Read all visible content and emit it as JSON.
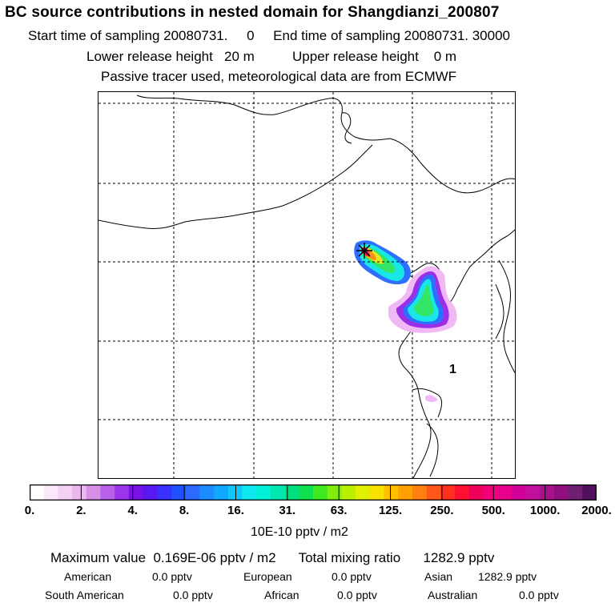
{
  "header": {
    "title": "BC  source contributions in nested domain for Shangdianzi_200807",
    "sampling": "Start time of sampling 20080731.     0     End time of sampling 20080731. 30000",
    "release": "Lower release height   20 m          Upper release height    0 m",
    "tracer": "Passive tracer used, meteorological data are from ECMWF"
  },
  "map": {
    "label_1": "1",
    "colors": {
      "coast": "#000000",
      "grid": "#000000",
      "plume_outer": "#f0b8f5",
      "plume_violet": "#9b2fe8",
      "plume_blue": "#2f6fff",
      "plume_cyan": "#19e6e6",
      "plume_green": "#33e666",
      "plume_yellow": "#e8e623",
      "plume_orange": "#ff8f1a",
      "plume_red": "#f5203a",
      "plume_magenta": "#d8148c",
      "receptor_marker": "#000000"
    }
  },
  "colorbar": {
    "ticks": [
      "0.",
      "2.",
      "4.",
      "8.",
      "16.",
      "31.",
      "63.",
      "125.",
      "250.",
      "500.",
      "1000.",
      "2000."
    ],
    "unit": "10E-10 pptv / m2",
    "colors": [
      "#ffffff",
      "#fbe8fb",
      "#f5d0f5",
      "#eab8ee",
      "#d590e6",
      "#b860e8",
      "#9c35ea",
      "#7a10e8",
      "#5a18f0",
      "#3a30ff",
      "#2050ff",
      "#2a6aff",
      "#1a8cff",
      "#10a8ff",
      "#10c8f8",
      "#10e8f0",
      "#00f0d8",
      "#00e8b0",
      "#00e080",
      "#10e050",
      "#40e820",
      "#80ec10",
      "#b8f000",
      "#e0f000",
      "#f8e000",
      "#ffc000",
      "#ffa000",
      "#ff8010",
      "#ff5818",
      "#ff3020",
      "#ff1030",
      "#f0005a",
      "#f0007a",
      "#e8008c",
      "#d00098",
      "#c0109c",
      "#a8108c",
      "#901080",
      "#702070",
      "#501060"
    ]
  },
  "stats": {
    "maximum": "Maximum value  0.169E-06 pptv / m2      Total mixing ratio      1282.9 pptv",
    "row1": [
      {
        "name": "American",
        "value": "0.0 pptv"
      },
      {
        "name": "European",
        "value": "0.0 pptv"
      },
      {
        "name": "Asian",
        "value": "1282.9 pptv"
      }
    ],
    "row2": [
      {
        "name": "South American",
        "value": "0.0 pptv"
      },
      {
        "name": "African",
        "value": "0.0 pptv"
      },
      {
        "name": "Australian",
        "value": "0.0 pptv"
      }
    ]
  }
}
